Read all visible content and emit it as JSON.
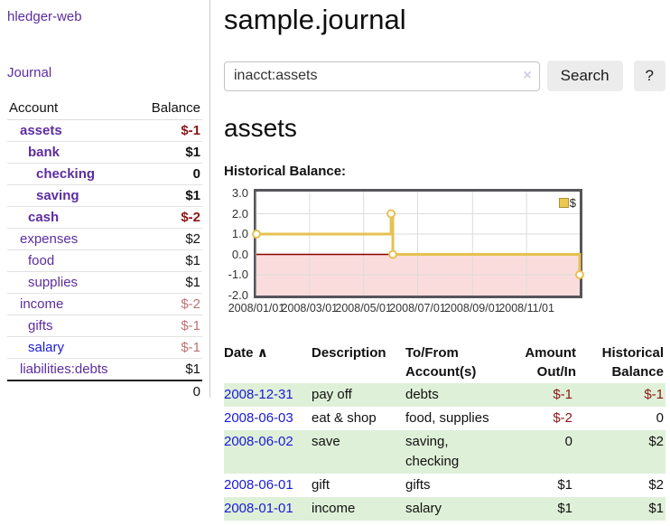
{
  "sidebar": {
    "app_title": "hledger-web",
    "journal_label": "Journal",
    "accounts_table": {
      "headers": {
        "account": "Account",
        "balance": "Balance"
      },
      "rows": [
        {
          "account": "assets",
          "balance": "$-1",
          "depth": 1,
          "bold": true
        },
        {
          "account": "bank",
          "balance": "$1",
          "depth": 2,
          "bold": true
        },
        {
          "account": "checking",
          "balance": "0",
          "depth": 3,
          "bold": true
        },
        {
          "account": "saving",
          "balance": "$1",
          "depth": 3,
          "bold": true
        },
        {
          "account": "cash",
          "balance": "$-2",
          "depth": 2,
          "bold": true
        },
        {
          "account": "expenses",
          "balance": "$2",
          "depth": 1,
          "bold": false
        },
        {
          "account": "food",
          "balance": "$1",
          "depth": 2,
          "bold": false
        },
        {
          "account": "supplies",
          "balance": "$1",
          "depth": 2,
          "bold": false
        },
        {
          "account": "income",
          "balance": "$-2",
          "depth": 1,
          "bold": false
        },
        {
          "account": "gifts",
          "balance": "$-1",
          "depth": 2,
          "bold": false
        },
        {
          "account": "salary",
          "balance": "$-1",
          "depth": 2,
          "bold": false,
          "unvisited": true
        },
        {
          "account": "liabilities:debts",
          "balance": "$1",
          "depth": 1,
          "bold": false
        }
      ],
      "total": "0"
    }
  },
  "header": {
    "title": "sample.journal"
  },
  "search": {
    "value": "inacct:assets",
    "clear_icon": "×",
    "search_button": "Search",
    "help_button": "?"
  },
  "main": {
    "account_heading": "assets",
    "chart_title": "Historical Balance:"
  },
  "chart_data": {
    "type": "line",
    "step": true,
    "title": "Historical Balance",
    "series": [
      {
        "name": "$",
        "points": [
          [
            "2008-01-01",
            1
          ],
          [
            "2008-06-01",
            2
          ],
          [
            "2008-06-03",
            0
          ],
          [
            "2008-12-31",
            -1
          ]
        ]
      }
    ],
    "x_range": [
      "2008-01-01",
      "2008-12-31"
    ],
    "x_ticks": [
      "2008/01/01",
      "2008/03/01",
      "2008/05/01",
      "2008/07/01",
      "2008/09/01",
      "2008/11/01"
    ],
    "y_ticks": [
      "3.0",
      "2.0",
      "1.0",
      "0.0",
      "-1.0",
      "-2.0"
    ],
    "ylim": [
      -2,
      3
    ],
    "grid": true,
    "legend_position": "top-right",
    "line_color": "#e6c152",
    "marker_fill": "#ffffff",
    "negative_region_fill": "#fbdcdc",
    "zero_line_color": "#8e0000",
    "grid_color": "#dddddd"
  },
  "register_table": {
    "headers": {
      "date": "Date",
      "sort_icon": "∧",
      "description": "Description",
      "account_line1": "To/From",
      "account_line2": "Account(s)",
      "amount_line1": "Amount",
      "amount_line2": "Out/In",
      "balance_line1": "Historical",
      "balance_line2": "Balance"
    },
    "rows": [
      {
        "date": "2008-12-31",
        "description": "pay off",
        "accounts": "debts",
        "amount": "$-1",
        "balance": "$-1",
        "highlight": true
      },
      {
        "date": "2008-06-03",
        "description": "eat & shop",
        "accounts": "food, supplies",
        "amount": "$-2",
        "balance": "0",
        "highlight": false
      },
      {
        "date": "2008-06-02",
        "description": "save",
        "accounts": "saving, checking",
        "amount": "0",
        "balance": "$2",
        "highlight": true
      },
      {
        "date": "2008-06-01",
        "description": "gift",
        "accounts": "gifts",
        "amount": "$1",
        "balance": "$2",
        "highlight": false
      },
      {
        "date": "2008-01-01",
        "description": "income",
        "accounts": "salary",
        "amount": "$1",
        "balance": "$1",
        "highlight": true
      }
    ]
  },
  "colors": {
    "link_purple": "#5c2da0",
    "link_blue": "#1a1ad6",
    "negative_strong": "#8b1616",
    "negative_soft": "#bc7272",
    "highlight_row_green": "#dff0d8",
    "chart_gold": "#e6c152"
  }
}
